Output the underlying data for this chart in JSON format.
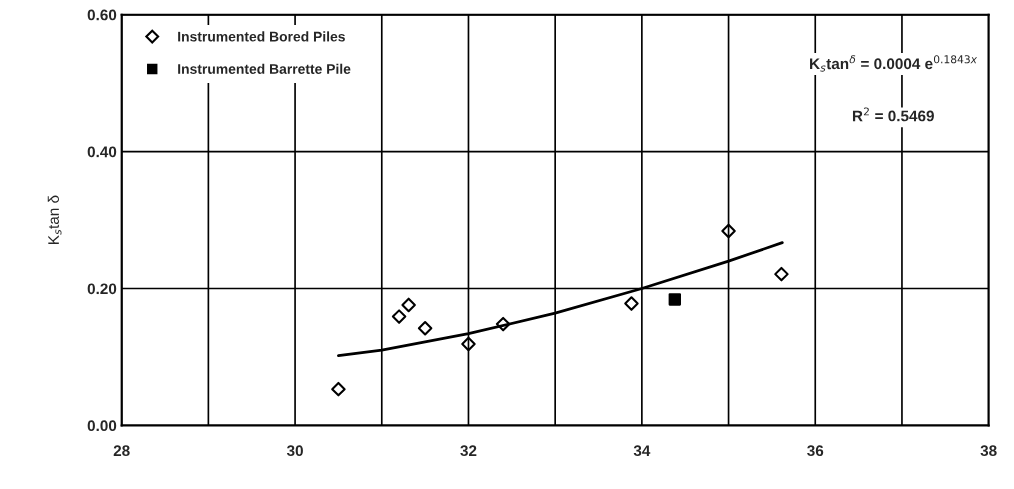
{
  "chart_data": {
    "type": "scatter",
    "ylabel": "K$_{s}$tan δ",
    "xlim": [
      28,
      38
    ],
    "ylim": [
      0,
      0.6
    ],
    "xticks": [
      28,
      {
        "value": 29,
        "label": null
      },
      30,
      {
        "value": 31,
        "label": null
      },
      32,
      {
        "value": 33,
        "label": null
      },
      34,
      {
        "value": 35,
        "label": null
      },
      36,
      {
        "value": 37,
        "label": null
      },
      38
    ],
    "yticks": [
      {
        "value": 0,
        "label": "0.00"
      },
      {
        "value": 0.2,
        "label": "0.20"
      },
      {
        "value": 0.4,
        "label": "0.40"
      },
      {
        "value": 0.6,
        "label": "0.60"
      }
    ],
    "grid": true,
    "legend": "top left",
    "series": [
      {
        "name": "Instrumented Bored Piles",
        "marker": "diamond",
        "color": "#000000",
        "x": [
          30.5,
          31.2,
          31.31,
          31.5,
          32.0,
          32.4,
          33.88,
          35.0,
          35.61
        ],
        "values": [
          0.053,
          0.159,
          0.176,
          0.142,
          0.119,
          0.148,
          0.178,
          0.284,
          0.221
        ]
      },
      {
        "name": "Instrumented Barrette Pile",
        "marker": "square",
        "color": "#000000",
        "x": [
          34.38
        ],
        "values": [
          0.184
        ]
      },
      {
        "type": "line",
        "color": "#000000",
        "x": [
          30.5,
          31.0,
          32.0,
          33.0,
          34.0,
          35.0,
          35.62
        ],
        "values": [
          0.102,
          0.11,
          0.134,
          0.164,
          0.2,
          0.24,
          0.267
        ]
      }
    ],
    "annotations": [
      "K$_{s}$tan$^{δ}$ = 0.0004 e$^{0.1843x}$",
      "R$^{2}$ = 0.5469"
    ]
  }
}
